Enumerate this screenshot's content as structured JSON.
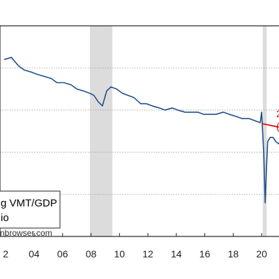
{
  "chart_data": {
    "type": "line",
    "x_tick_labels": [
      "2",
      "04",
      "06",
      "08",
      "10",
      "12",
      "14",
      "16",
      "18",
      "20",
      "2"
    ],
    "recession_bands": [
      [
        2007.92,
        2009.5
      ],
      [
        2020.08,
        2020.35
      ]
    ],
    "series": [
      {
        "name": "g VMT/GDP",
        "color": "#1f4e8c",
        "x": [
          2001.9,
          2002.4,
          2002.9,
          2003.3,
          2003.8,
          2004.2,
          2004.7,
          2005.2,
          2005.6,
          2006.1,
          2006.6,
          2007.0,
          2007.5,
          2007.9,
          2008.2,
          2008.5,
          2008.8,
          2009.1,
          2009.4,
          2009.8,
          2010.2,
          2010.6,
          2011.0,
          2011.5,
          2011.9,
          2012.3,
          2012.8,
          2013.2,
          2013.7,
          2014.1,
          2014.6,
          2015.0,
          2015.5,
          2015.9,
          2016.4,
          2016.8,
          2017.3,
          2017.7,
          2018.2,
          2018.6,
          2019.1,
          2019.5,
          2019.9,
          2020.0,
          2020.15,
          2020.25,
          2020.33,
          2020.42,
          2020.6,
          2020.8,
          2021.0,
          2021.2,
          2021.4,
          2021.6,
          2021.8,
          2022.0,
          2022.2
        ],
        "y": [
          0.84,
          0.85,
          0.81,
          0.79,
          0.78,
          0.77,
          0.76,
          0.75,
          0.73,
          0.73,
          0.72,
          0.7,
          0.69,
          0.68,
          0.67,
          0.64,
          0.62,
          0.69,
          0.71,
          0.7,
          0.68,
          0.67,
          0.66,
          0.63,
          0.63,
          0.62,
          0.61,
          0.6,
          0.61,
          0.6,
          0.59,
          0.59,
          0.59,
          0.58,
          0.58,
          0.58,
          0.59,
          0.58,
          0.57,
          0.56,
          0.56,
          0.55,
          0.54,
          0.59,
          0.39,
          0.16,
          0.31,
          0.45,
          0.47,
          0.47,
          0.45,
          0.44,
          0.46,
          0.49,
          0.5,
          0.53,
          0.52
        ]
      },
      {
        "name": "",
        "color": "#dd1111",
        "x": [
          2020.0,
          2022.2
        ],
        "y": [
          0.536,
          0.505
        ]
      }
    ],
    "xlim": [
      2001.6,
      2022.2
    ],
    "ylim": [
      0.0,
      1.0
    ],
    "grid": true,
    "legend": {
      "placement": "bottom-left",
      "entries": [
        "g VMT/GDP",
        "io"
      ]
    },
    "annotations": [
      "2",
      "("
    ],
    "source_note": "nbrowser.com"
  }
}
